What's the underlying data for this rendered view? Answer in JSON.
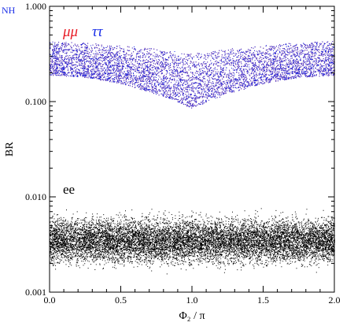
{
  "chart_data": {
    "type": "scatter",
    "corner_label": "NH",
    "xlabel": "Φ₂ / π",
    "ylabel": "BR",
    "xlim": [
      0.0,
      2.0
    ],
    "ylim": [
      0.001,
      1.0
    ],
    "yscale": "log",
    "grid": false,
    "x_ticks": [
      "0.0",
      "0.5",
      "1.0",
      "1.5",
      "2.0"
    ],
    "y_ticks": [
      "0.001",
      "0.010",
      "0.100",
      "1.000"
    ],
    "series": [
      {
        "name": "μμ",
        "color": "#e8202a",
        "band_x": [
          0.0,
          0.25,
          0.5,
          0.75,
          1.0,
          1.25,
          1.5,
          1.75,
          2.0
        ],
        "band_upper": [
          0.44,
          0.42,
          0.39,
          0.36,
          0.33,
          0.36,
          0.39,
          0.42,
          0.44
        ],
        "band_lower": [
          0.19,
          0.18,
          0.155,
          0.12,
          0.085,
          0.12,
          0.155,
          0.18,
          0.19
        ]
      },
      {
        "name": "ττ",
        "color": "#1a2ee8",
        "band_x": [
          0.0,
          0.25,
          0.5,
          0.75,
          1.0,
          1.25,
          1.5,
          1.75,
          2.0
        ],
        "band_upper": [
          0.44,
          0.42,
          0.39,
          0.36,
          0.33,
          0.36,
          0.39,
          0.42,
          0.44
        ],
        "band_lower": [
          0.19,
          0.18,
          0.155,
          0.12,
          0.085,
          0.12,
          0.155,
          0.18,
          0.19
        ]
      },
      {
        "name": "ee",
        "color": "#000000",
        "band_x": [
          0.0,
          2.0
        ],
        "band_upper": [
          0.011,
          0.011
        ],
        "band_lower": [
          0.001,
          0.001
        ],
        "band_peak": 0.0035
      }
    ]
  }
}
